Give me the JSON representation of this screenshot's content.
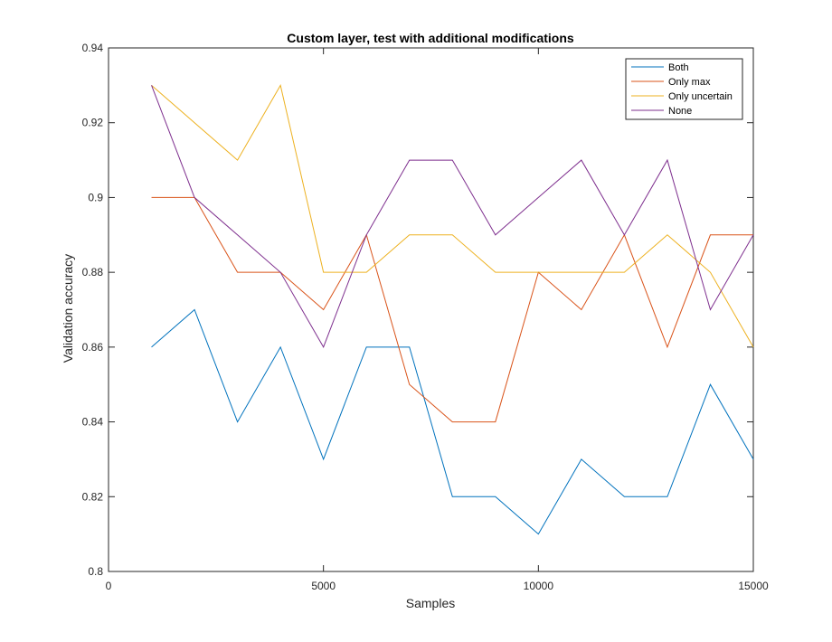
{
  "chart_data": {
    "type": "line",
    "title": "Custom layer, test with additional modifications",
    "xlabel": "Samples",
    "ylabel": "Validation accuracy",
    "xlim": [
      0,
      15000
    ],
    "ylim": [
      0.8,
      0.94
    ],
    "xticks": [
      0,
      5000,
      10000,
      15000
    ],
    "yticks": [
      0.8,
      0.82,
      0.84,
      0.86,
      0.88,
      0.9,
      0.92,
      0.94
    ],
    "xtick_labels": [
      "0",
      "5000",
      "10000",
      "15000"
    ],
    "ytick_labels": [
      "0.8",
      "0.82",
      "0.84",
      "0.86",
      "0.88",
      "0.9",
      "0.92",
      "0.94"
    ],
    "grid": false,
    "legend_position": "top-right",
    "x": [
      1000,
      2000,
      3000,
      4000,
      5000,
      6000,
      7000,
      8000,
      9000,
      10000,
      11000,
      12000,
      13000,
      14000,
      15000
    ],
    "series": [
      {
        "name": "Both",
        "color": "#0072BD",
        "values": [
          0.86,
          0.87,
          0.84,
          0.86,
          0.83,
          0.86,
          0.86,
          0.82,
          0.82,
          0.81,
          0.83,
          0.82,
          0.82,
          0.85,
          0.83
        ]
      },
      {
        "name": "Only max",
        "color": "#D95319",
        "values": [
          0.9,
          0.9,
          0.88,
          0.88,
          0.87,
          0.89,
          0.85,
          0.84,
          0.84,
          0.88,
          0.87,
          0.89,
          0.86,
          0.89,
          0.89
        ]
      },
      {
        "name": "Only uncertain",
        "color": "#EDB120",
        "values": [
          0.93,
          0.92,
          0.91,
          0.93,
          0.88,
          0.88,
          0.89,
          0.89,
          0.88,
          0.88,
          0.88,
          0.88,
          0.89,
          0.88,
          0.86
        ]
      },
      {
        "name": "None",
        "color": "#7E2F8E",
        "values": [
          0.93,
          0.9,
          0.89,
          0.88,
          0.86,
          0.89,
          0.91,
          0.91,
          0.89,
          0.9,
          0.91,
          0.89,
          0.91,
          0.87,
          0.89
        ]
      }
    ]
  }
}
